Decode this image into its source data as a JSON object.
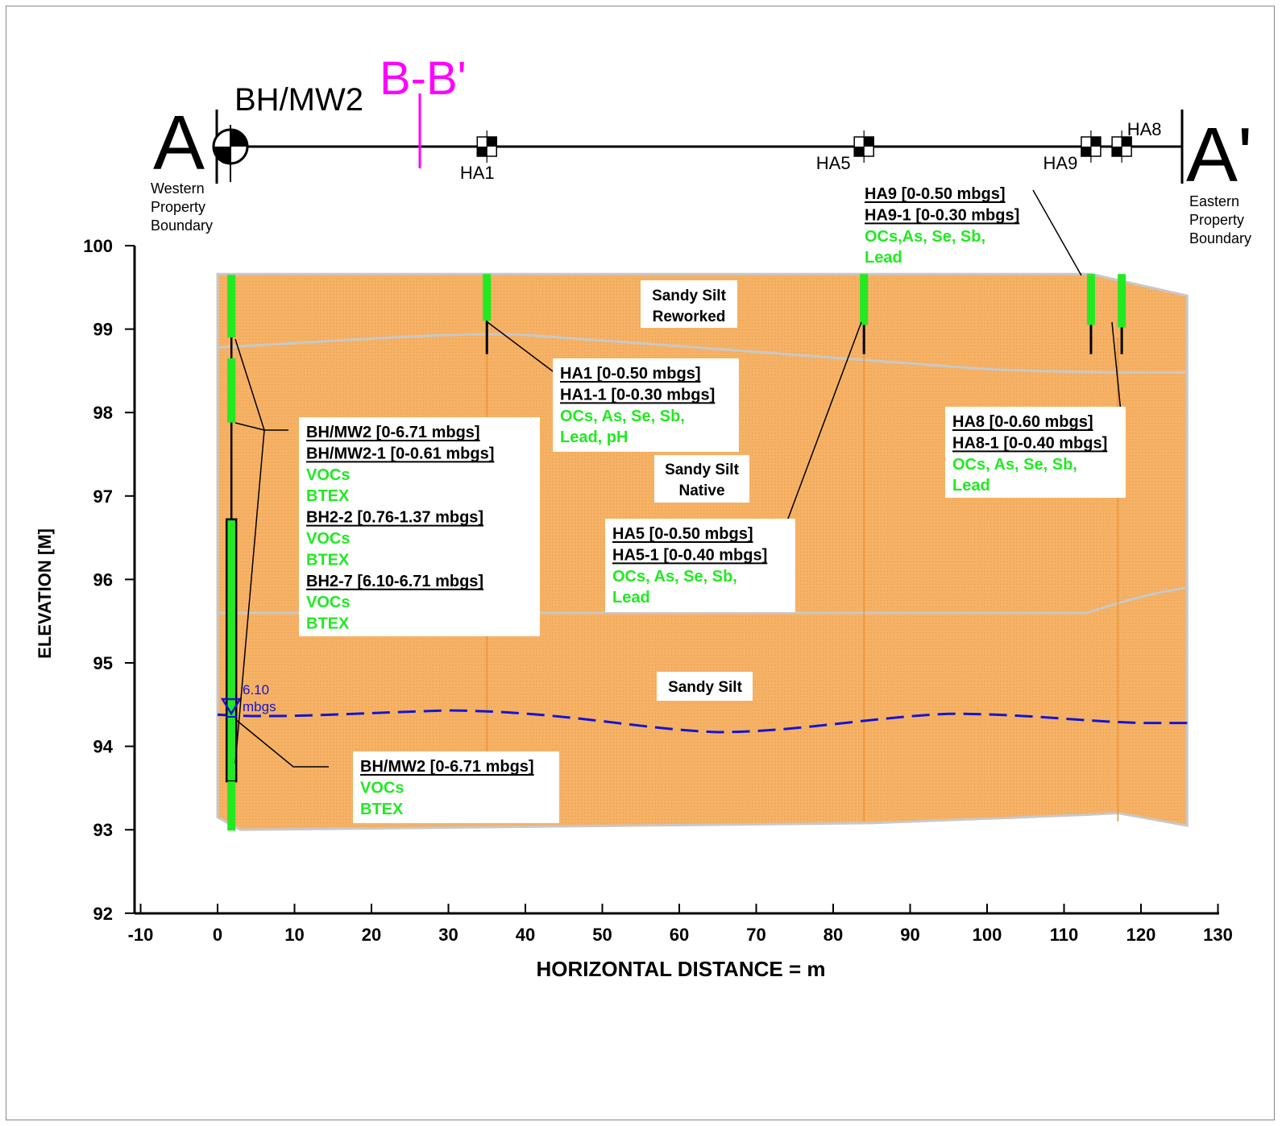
{
  "section": {
    "start_label": "A",
    "end_label": "A'",
    "start_note": [
      "Western",
      "Property",
      "Boundary"
    ],
    "end_note": [
      "Eastern",
      "Property",
      "Boundary"
    ],
    "cross_section_label": "B-B'",
    "borehole_label": "BH/MW2",
    "hand_augers": [
      {
        "id": "HA1",
        "x": 35
      },
      {
        "id": "HA5",
        "x": 84
      },
      {
        "id": "HA9",
        "x": 113.5
      },
      {
        "id": "HA8",
        "x": 117.5
      }
    ]
  },
  "axes": {
    "xlabel": "HORIZONTAL DISTANCE = m",
    "ylabel": "ELEVATION [M]",
    "xlim": [
      -10,
      130
    ],
    "ylim": [
      92,
      100
    ],
    "xticks": [
      "-10",
      "0",
      "10",
      "20",
      "30",
      "40",
      "50",
      "60",
      "70",
      "80",
      "90",
      "100",
      "110",
      "120",
      "130"
    ],
    "yticks": [
      "92",
      "93",
      "94",
      "95",
      "96",
      "97",
      "98",
      "99",
      "100"
    ]
  },
  "layers": [
    {
      "name_lines": [
        "Sandy Silt",
        "Reworked"
      ]
    },
    {
      "name_lines": [
        "Sandy Silt",
        "Native"
      ]
    },
    {
      "name_lines": [
        "Sandy Silt"
      ]
    }
  ],
  "water_level": {
    "line1": "6.10",
    "line2": "mbgs"
  },
  "callouts": {
    "bh_upper": {
      "lines": [
        {
          "text": "BH/MW2 [0-6.71 mbgs]",
          "style": "ul"
        },
        {
          "text": "BH/MW2-1 [0-0.61 mbgs]",
          "style": "ul"
        },
        {
          "text": "VOCs",
          "style": "green"
        },
        {
          "text": "BTEX",
          "style": "green"
        },
        {
          "text": "BH2-2 [0.76-1.37 mbgs]",
          "style": "ul"
        },
        {
          "text": "VOCs",
          "style": "green"
        },
        {
          "text": "BTEX",
          "style": "green"
        },
        {
          "text": "BH2-7 [6.10-6.71 mbgs]",
          "style": "ul"
        },
        {
          "text": "VOCs",
          "style": "green"
        },
        {
          "text": "BTEX",
          "style": "green"
        }
      ]
    },
    "bh_lower": {
      "lines": [
        {
          "text": "BH/MW2 [0-6.71 mbgs]",
          "style": "ul"
        },
        {
          "text": "VOCs",
          "style": "green"
        },
        {
          "text": "BTEX",
          "style": "green"
        }
      ]
    },
    "ha1": {
      "lines": [
        {
          "text": "HA1 [0-0.50 mbgs]",
          "style": "ul"
        },
        {
          "text": "HA1-1 [0-0.30 mbgs]",
          "style": "ul"
        },
        {
          "text": "OCs, As, Se, Sb,",
          "style": "green"
        },
        {
          "text": "Lead, pH",
          "style": "green"
        }
      ]
    },
    "ha5": {
      "lines": [
        {
          "text": "HA5 [0-0.50 mbgs]",
          "style": "ul"
        },
        {
          "text": "HA5-1 [0-0.40 mbgs]",
          "style": "ul"
        },
        {
          "text": "OCs, As, Se, Sb,",
          "style": "green"
        },
        {
          "text": "Lead",
          "style": "green"
        }
      ]
    },
    "ha8": {
      "lines": [
        {
          "text": "HA8 [0-0.60 mbgs]",
          "style": "ul"
        },
        {
          "text": "HA8-1 [0-0.40 mbgs]",
          "style": "ul"
        },
        {
          "text": "OCs, As, Se, Sb,",
          "style": "green"
        },
        {
          "text": "Lead",
          "style": "green"
        }
      ]
    },
    "ha9": {
      "lines": [
        {
          "text": "HA9 [0-0.50 mbgs]",
          "style": "ul"
        },
        {
          "text": "HA9-1 [0-0.30 mbgs]",
          "style": "ul"
        },
        {
          "text": "OCs,As, Se, Sb,",
          "style": "green"
        },
        {
          "text": "Lead",
          "style": "green"
        }
      ]
    }
  },
  "colors": {
    "soil": "#f5b266",
    "soil_dot": "#ef9f49",
    "boundary": "#c8c8c8",
    "sample": "#22e922",
    "water": "#1414d2",
    "bb_magenta": "#ff00ff",
    "text": "#000000"
  }
}
